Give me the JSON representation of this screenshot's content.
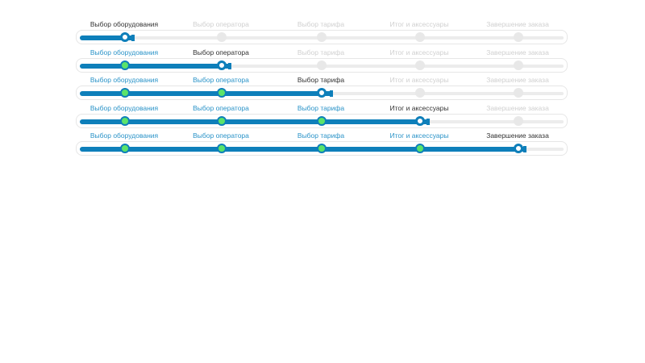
{
  "steps": [
    "Выбор оборудования",
    "Выбор оператора",
    "Выбор тарифа",
    "Итог и аксессуары",
    "Завершение заказа"
  ],
  "steppers": [
    {
      "current_step": 1,
      "progress": 0.11
    },
    {
      "current_step": 2,
      "progress": 0.31
    },
    {
      "current_step": 3,
      "progress": 0.52
    },
    {
      "current_step": 4,
      "progress": 0.72
    },
    {
      "current_step": 5,
      "progress": 0.92
    }
  ],
  "colors": {
    "accent": "#0e7fba",
    "done_label": "#2a93c8",
    "current_label": "#333333",
    "todo_label": "#d0d0d0",
    "done_node": "#5be36a",
    "rail": "#ececec"
  }
}
